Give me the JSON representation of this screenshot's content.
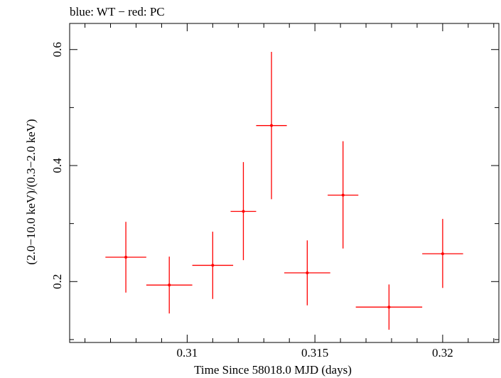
{
  "chart_data": {
    "type": "scatter",
    "title": "blue: WT − red: PC",
    "xlabel": "Time Since 58018.0 MJD (days)",
    "ylabel": "(2.0−10.0 keV)/(0.3−2.0 keV)",
    "xlim": [
      0.3054,
      0.3222
    ],
    "ylim": [
      0.095,
      0.645
    ],
    "x_ticks": [
      0.31,
      0.315,
      0.32
    ],
    "x_tick_labels": [
      "0.31",
      "0.315",
      "0.32"
    ],
    "y_ticks": [
      0.2,
      0.4,
      0.6
    ],
    "y_tick_labels": [
      "0.2",
      "0.4",
      "0.6"
    ],
    "grid": false,
    "series": [
      {
        "name": "PC",
        "color": "#ff0000",
        "points": [
          {
            "x": 0.3076,
            "y": 0.242,
            "xerr": 0.0008,
            "ylo": 0.181,
            "yhi": 0.303
          },
          {
            "x": 0.3093,
            "y": 0.194,
            "xerr": 0.0009,
            "ylo": 0.145,
            "yhi": 0.243
          },
          {
            "x": 0.311,
            "y": 0.228,
            "xerr": 0.0008,
            "ylo": 0.17,
            "yhi": 0.286
          },
          {
            "x": 0.3122,
            "y": 0.321,
            "xerr": 0.0005,
            "ylo": 0.237,
            "yhi": 0.406
          },
          {
            "x": 0.3133,
            "y": 0.469,
            "xerr": 0.0006,
            "ylo": 0.342,
            "yhi": 0.596
          },
          {
            "x": 0.3147,
            "y": 0.215,
            "xerr": 0.0009,
            "ylo": 0.159,
            "yhi": 0.271
          },
          {
            "x": 0.3161,
            "y": 0.349,
            "xerr": 0.0006,
            "ylo": 0.257,
            "yhi": 0.442
          },
          {
            "x": 0.3179,
            "y": 0.156,
            "xerr": 0.0013,
            "ylo": 0.117,
            "yhi": 0.195
          },
          {
            "x": 0.32,
            "y": 0.248,
            "xerr": 0.0008,
            "ylo": 0.189,
            "yhi": 0.308
          }
        ]
      }
    ]
  }
}
